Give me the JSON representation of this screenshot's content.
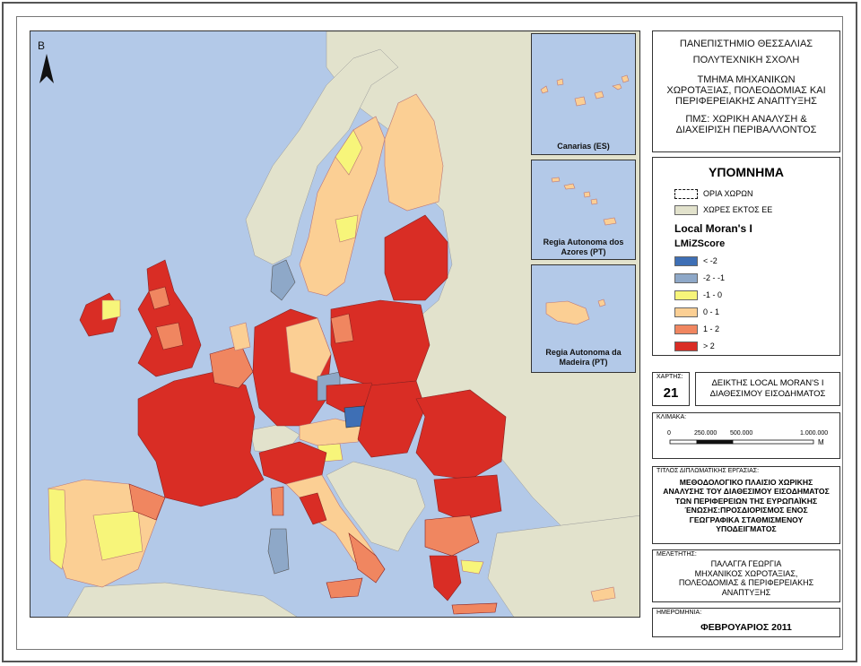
{
  "map": {
    "north_label": "B",
    "inset_labels": [
      "Canarias (ES)",
      "Regia Autonoma dos Azores (PT)",
      "Regia Autonoma da Madeira (PT)"
    ]
  },
  "title_block": {
    "line1": "ΠΑΝΕΠΙΣΤΗΜΙΟ ΘΕΣΣΑΛΙΑΣ",
    "line2": "ΠΟΛΥΤΕΧΝΙΚΗ ΣΧΟΛΗ",
    "line3": "ΤΜΗΜΑ ΜΗΧΑΝΙΚΩΝ",
    "line4": "ΧΩΡΟΤΑΞΙΑΣ, ΠΟΛΕΟΔΟΜΙΑΣ ΚΑΙ",
    "line5": "ΠΕΡΙΦΕΡΕΙΑΚΗΣ ΑΝΑΠΤΥΞΗΣ",
    "line6": "ΠΜΣ: ΧΩΡΙΚΗ ΑΝΑΛΥΣΗ &",
    "line7": "ΔΙΑΧΕΙΡΙΣΗ ΠΕΡΙΒΑΛΛΟΝΤΟΣ"
  },
  "legend": {
    "heading": "ΥΠΟΜΝΗΜΑ",
    "borders_label": "ΟΡΙΑ ΧΩΡΩΝ",
    "non_eu_label": "ΧΩΡΕΣ ΕΚΤΟΣ ΕΕ",
    "index_title": "Local Moran's I",
    "field_name": "LMiZScore",
    "classes": [
      {
        "label": "< -2",
        "color": "#3e6fb5"
      },
      {
        "label": "-2 - -1",
        "color": "#8ea8c8"
      },
      {
        "label": "-1 - 0",
        "color": "#f7f57a"
      },
      {
        "label": "0 - 1",
        "color": "#fbcf94"
      },
      {
        "label": "1 - 2",
        "color": "#f08660"
      },
      {
        "label": "> 2",
        "color": "#d92d25"
      }
    ],
    "non_eu_color": "#e2e2cc"
  },
  "map_number": {
    "label": "ΧΑΡΤΗΣ:",
    "value": "21"
  },
  "map_title": {
    "line1": "ΔΕΙΚΤΗΣ LOCAL MORAN'S I",
    "line2": "ΔΙΑΘΕΣΙΜΟΥ ΕΙΣΟΔΗΜΑΤΟΣ"
  },
  "scale": {
    "label": "ΚΛΙΜΑΚΑ:",
    "ticks": [
      "0",
      "250.000",
      "500.000",
      "1.000.000"
    ],
    "unit": "M"
  },
  "thesis": {
    "label": "ΤΙΤΛΟΣ ΔΙΠΛΩΜΑΤΙΚΗΣ ΕΡΓΑΣΙΑΣ:",
    "lines": [
      "ΜΕΘΟΔΟΛΟΓΙΚΟ ΠΛΑΙΣΙΟ ΧΩΡΙΚΗΣ",
      "ΑΝΑΛΥΣΗΣ ΤΟΥ ΔΙΑΘΕΣΙΜΟΥ ΕΙΣΟΔΗΜΑΤΟΣ",
      "ΤΩΝ ΠΕΡΙΦΕΡΕΙΩΝ ΤΗΣ ΕΥΡΩΠΑΪΚΗΣ",
      "ΈΝΩΣΗΣ:ΠΡΟΣΔΙΟΡΙΣΜΟΣ ΕΝΟΣ",
      "ΓΕΩΓΡΑΦΙΚΑ ΣΤΑΘΜΙΣΜΕΝΟΥ",
      "ΥΠΟΔΕΙΓΜΑΤΟΣ"
    ]
  },
  "study": {
    "label": "ΜΕΛΕΤΗΤΗΣ:",
    "lines": [
      "ΠΑΛΑΓΓΑ ΓΕΩΡΓΙΑ",
      "ΜΗΧΑΝΙΚΟΣ ΧΩΡΟΤΑΞΙΑΣ,",
      "ΠΟΛΕΟΔΟΜΙΑΣ & ΠΕΡΙΦΕΡΕΙΑΚΗΣ",
      "ΑΝΑΠΤΥΞΗΣ"
    ]
  },
  "date": {
    "label": "ΗΜΕΡΟΜΗΝΙΑ:",
    "value": "ΦΕΒΡΟΥΑΡΙΟΣ 2011"
  }
}
